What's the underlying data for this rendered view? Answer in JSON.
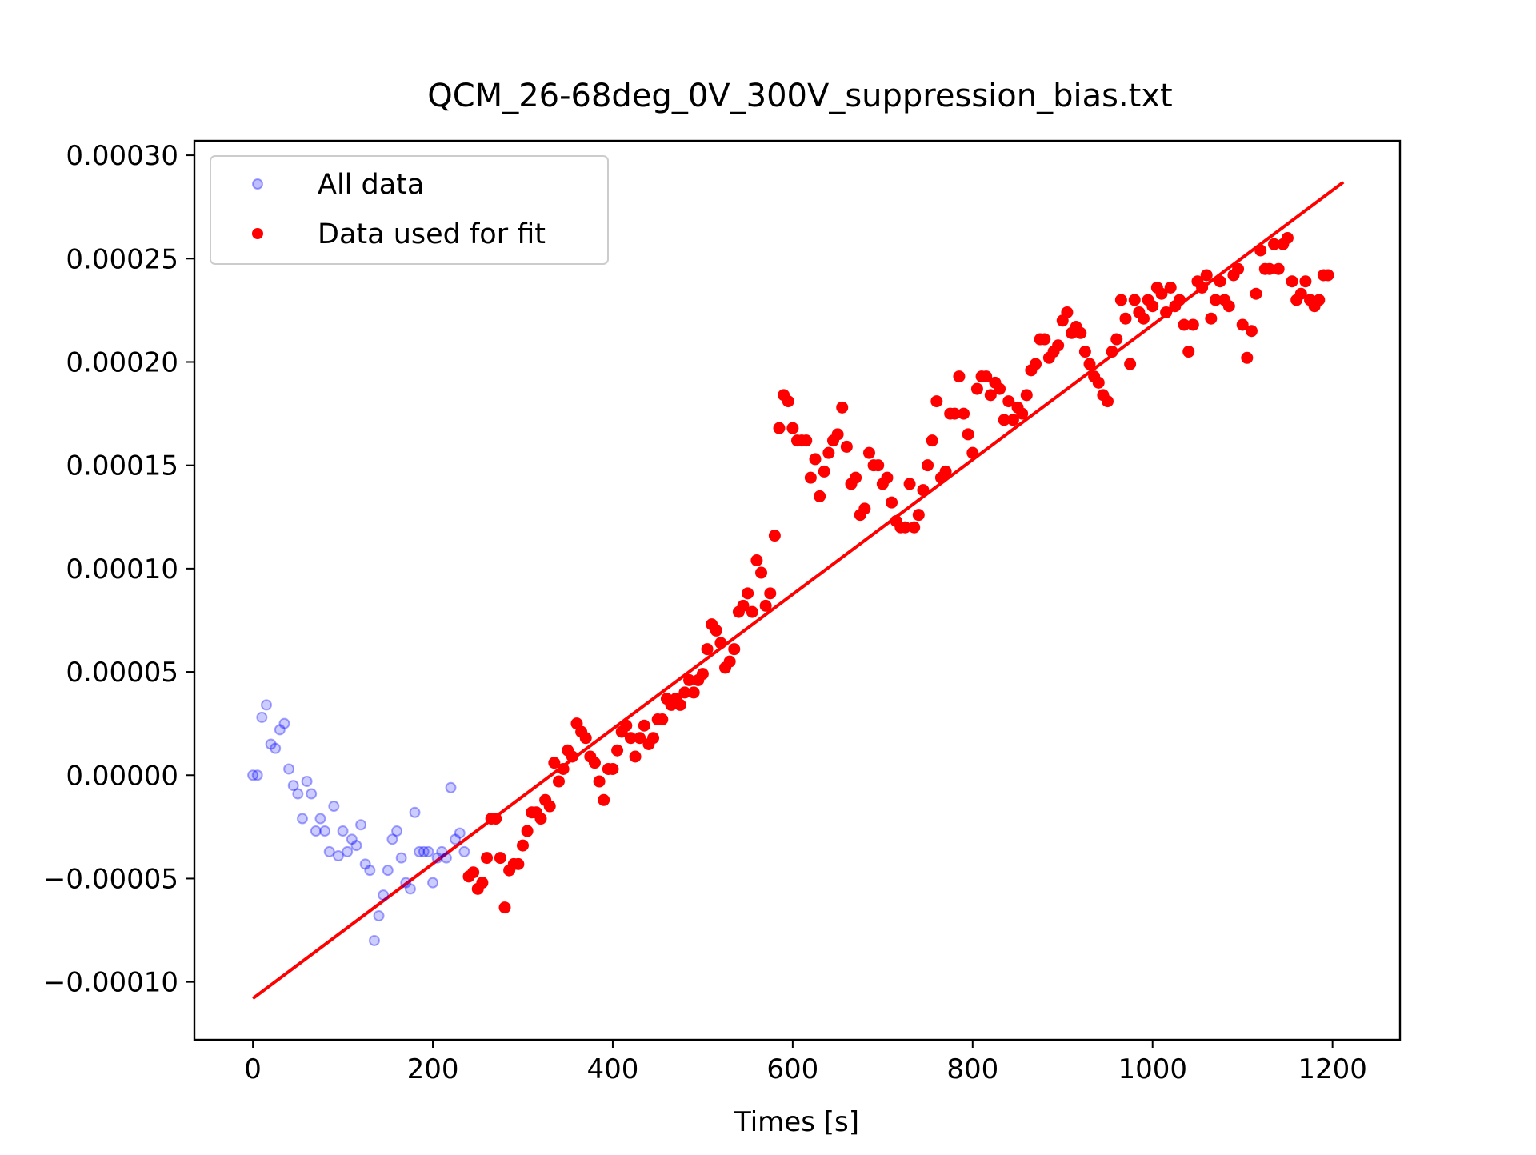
{
  "chart_data": {
    "type": "scatter",
    "title": "QCM_26-68deg_0V_300V_suppression_bias.txt",
    "xlabel": "Times [s]",
    "ylabel": "",
    "xlim": [
      -65,
      1275
    ],
    "ylim": [
      -0.000128,
      0.000307
    ],
    "x_ticks": [
      {
        "value": 0,
        "label": "0"
      },
      {
        "value": 200,
        "label": "200"
      },
      {
        "value": 400,
        "label": "400"
      },
      {
        "value": 600,
        "label": "600"
      },
      {
        "value": 800,
        "label": "800"
      },
      {
        "value": 1000,
        "label": "1000"
      },
      {
        "value": 1200,
        "label": "1200"
      }
    ],
    "y_ticks": [
      {
        "value": -0.0001,
        "label": "−0.00010"
      },
      {
        "value": -5e-05,
        "label": "−0.00005"
      },
      {
        "value": 0,
        "label": "0.00000"
      },
      {
        "value": 5e-05,
        "label": "0.00005"
      },
      {
        "value": 0.0001,
        "label": "0.00010"
      },
      {
        "value": 0.00015,
        "label": "0.00015"
      },
      {
        "value": 0.0002,
        "label": "0.00020"
      },
      {
        "value": 0.00025,
        "label": "0.00025"
      },
      {
        "value": 0.0003,
        "label": "0.00030"
      }
    ],
    "grid": false,
    "legend_position": "top-left",
    "series": [
      {
        "name": "All data",
        "style": "hollow-circle",
        "color": "#0000ff",
        "points": [
          [
            0,
            0.0
          ],
          [
            5,
            0.0
          ],
          [
            10,
            2.8e-05
          ],
          [
            15,
            3.4e-05
          ],
          [
            20,
            1.5e-05
          ],
          [
            25,
            1.3e-05
          ],
          [
            30,
            2.2e-05
          ],
          [
            35,
            2.5e-05
          ],
          [
            40,
            3e-06
          ],
          [
            45,
            -5e-06
          ],
          [
            50,
            -9e-06
          ],
          [
            55,
            -2.1e-05
          ],
          [
            60,
            -3e-06
          ],
          [
            65,
            -9e-06
          ],
          [
            70,
            -2.7e-05
          ],
          [
            75,
            -2.1e-05
          ],
          [
            80,
            -2.7e-05
          ],
          [
            85,
            -3.7e-05
          ],
          [
            90,
            -1.5e-05
          ],
          [
            95,
            -3.9e-05
          ],
          [
            100,
            -2.7e-05
          ],
          [
            105,
            -3.7e-05
          ],
          [
            110,
            -3.1e-05
          ],
          [
            115,
            -3.4e-05
          ],
          [
            120,
            -2.4e-05
          ],
          [
            125,
            -4.3e-05
          ],
          [
            130,
            -4.6e-05
          ],
          [
            135,
            -8e-05
          ],
          [
            140,
            -6.8e-05
          ],
          [
            145,
            -5.8e-05
          ],
          [
            150,
            -4.6e-05
          ],
          [
            155,
            -3.1e-05
          ],
          [
            160,
            -2.7e-05
          ],
          [
            165,
            -4e-05
          ],
          [
            170,
            -5.2e-05
          ],
          [
            175,
            -5.5e-05
          ],
          [
            180,
            -1.8e-05
          ],
          [
            185,
            -3.7e-05
          ],
          [
            190,
            -3.7e-05
          ],
          [
            195,
            -3.7e-05
          ],
          [
            200,
            -5.2e-05
          ],
          [
            205,
            -4e-05
          ],
          [
            210,
            -3.7e-05
          ],
          [
            215,
            -4e-05
          ],
          [
            220,
            -6e-06
          ],
          [
            225,
            -3.1e-05
          ],
          [
            230,
            -2.8e-05
          ],
          [
            235,
            -3.7e-05
          ]
        ]
      },
      {
        "name": "Data used for fit",
        "style": "filled-circle",
        "color": "#ff0000",
        "points": [
          [
            240,
            -4.9e-05
          ],
          [
            245,
            -4.7e-05
          ],
          [
            250,
            -5.5e-05
          ],
          [
            255,
            -5.2e-05
          ],
          [
            260,
            -4e-05
          ],
          [
            265,
            -2.1e-05
          ],
          [
            270,
            -2.1e-05
          ],
          [
            275,
            -4e-05
          ],
          [
            280,
            -6.4e-05
          ],
          [
            285,
            -4.6e-05
          ],
          [
            290,
            -4.3e-05
          ],
          [
            295,
            -4.3e-05
          ],
          [
            300,
            -3.4e-05
          ],
          [
            305,
            -2.7e-05
          ],
          [
            310,
            -1.8e-05
          ],
          [
            315,
            -1.8e-05
          ],
          [
            320,
            -2.1e-05
          ],
          [
            325,
            -1.2e-05
          ],
          [
            330,
            -1.5e-05
          ],
          [
            335,
            6e-06
          ],
          [
            340,
            -3e-06
          ],
          [
            345,
            3e-06
          ],
          [
            350,
            1.2e-05
          ],
          [
            355,
            9e-06
          ],
          [
            360,
            2.5e-05
          ],
          [
            365,
            2.1e-05
          ],
          [
            370,
            1.8e-05
          ],
          [
            375,
            9e-06
          ],
          [
            380,
            6e-06
          ],
          [
            385,
            -3e-06
          ],
          [
            390,
            -1.2e-05
          ],
          [
            395,
            3e-06
          ],
          [
            400,
            3e-06
          ],
          [
            405,
            1.2e-05
          ],
          [
            410,
            2.1e-05
          ],
          [
            415,
            2.4e-05
          ],
          [
            420,
            1.8e-05
          ],
          [
            425,
            9e-06
          ],
          [
            430,
            1.8e-05
          ],
          [
            435,
            2.4e-05
          ],
          [
            440,
            1.5e-05
          ],
          [
            445,
            1.8e-05
          ],
          [
            450,
            2.7e-05
          ],
          [
            455,
            2.7e-05
          ],
          [
            460,
            3.7e-05
          ],
          [
            465,
            3.4e-05
          ],
          [
            470,
            3.7e-05
          ],
          [
            475,
            3.4e-05
          ],
          [
            480,
            4e-05
          ],
          [
            485,
            4.6e-05
          ],
          [
            490,
            4e-05
          ],
          [
            495,
            4.6e-05
          ],
          [
            500,
            4.9e-05
          ],
          [
            505,
            6.1e-05
          ],
          [
            510,
            7.3e-05
          ],
          [
            515,
            7e-05
          ],
          [
            520,
            6.4e-05
          ],
          [
            525,
            5.2e-05
          ],
          [
            530,
            5.5e-05
          ],
          [
            535,
            6.1e-05
          ],
          [
            540,
            7.9e-05
          ],
          [
            545,
            8.2e-05
          ],
          [
            550,
            8.8e-05
          ],
          [
            555,
            7.9e-05
          ],
          [
            560,
            0.000104
          ],
          [
            565,
            9.8e-05
          ],
          [
            570,
            8.2e-05
          ],
          [
            575,
            8.8e-05
          ],
          [
            580,
            0.000116
          ],
          [
            585,
            0.000168
          ],
          [
            590,
            0.000184
          ],
          [
            595,
            0.000181
          ],
          [
            600,
            0.000168
          ],
          [
            605,
            0.000162
          ],
          [
            610,
            0.000162
          ],
          [
            615,
            0.000162
          ],
          [
            620,
            0.000144
          ],
          [
            625,
            0.000153
          ],
          [
            630,
            0.000135
          ],
          [
            635,
            0.000147
          ],
          [
            640,
            0.000156
          ],
          [
            645,
            0.000162
          ],
          [
            650,
            0.000165
          ],
          [
            655,
            0.000178
          ],
          [
            660,
            0.000159
          ],
          [
            665,
            0.000141
          ],
          [
            670,
            0.000144
          ],
          [
            675,
            0.000126
          ],
          [
            680,
            0.000129
          ],
          [
            685,
            0.000156
          ],
          [
            690,
            0.00015
          ],
          [
            695,
            0.00015
          ],
          [
            700,
            0.000141
          ],
          [
            705,
            0.000144
          ],
          [
            710,
            0.000132
          ],
          [
            715,
            0.000123
          ],
          [
            720,
            0.00012
          ],
          [
            725,
            0.00012
          ],
          [
            730,
            0.000141
          ],
          [
            735,
            0.00012
          ],
          [
            740,
            0.000126
          ],
          [
            745,
            0.000138
          ],
          [
            750,
            0.00015
          ],
          [
            755,
            0.000162
          ],
          [
            760,
            0.000181
          ],
          [
            765,
            0.000144
          ],
          [
            770,
            0.000147
          ],
          [
            775,
            0.000175
          ],
          [
            780,
            0.000175
          ],
          [
            785,
            0.000193
          ],
          [
            790,
            0.000175
          ],
          [
            795,
            0.000165
          ],
          [
            800,
            0.000156
          ],
          [
            805,
            0.000187
          ],
          [
            810,
            0.000193
          ],
          [
            815,
            0.000193
          ],
          [
            820,
            0.000184
          ],
          [
            825,
            0.00019
          ],
          [
            830,
            0.000187
          ],
          [
            835,
            0.000172
          ],
          [
            840,
            0.000181
          ],
          [
            845,
            0.000172
          ],
          [
            850,
            0.000178
          ],
          [
            855,
            0.000175
          ],
          [
            860,
            0.000184
          ],
          [
            865,
            0.000196
          ],
          [
            870,
            0.000199
          ],
          [
            875,
            0.000211
          ],
          [
            880,
            0.000211
          ],
          [
            885,
            0.000202
          ],
          [
            890,
            0.000205
          ],
          [
            895,
            0.000208
          ],
          [
            900,
            0.00022
          ],
          [
            905,
            0.000224
          ],
          [
            910,
            0.000214
          ],
          [
            915,
            0.000217
          ],
          [
            920,
            0.000214
          ],
          [
            925,
            0.000205
          ],
          [
            930,
            0.000199
          ],
          [
            935,
            0.000193
          ],
          [
            940,
            0.00019
          ],
          [
            945,
            0.000184
          ],
          [
            950,
            0.000181
          ],
          [
            955,
            0.000205
          ],
          [
            960,
            0.000211
          ],
          [
            965,
            0.00023
          ],
          [
            970,
            0.000221
          ],
          [
            975,
            0.000199
          ],
          [
            980,
            0.00023
          ],
          [
            985,
            0.000224
          ],
          [
            990,
            0.000221
          ],
          [
            995,
            0.00023
          ],
          [
            1000,
            0.000227
          ],
          [
            1005,
            0.000236
          ],
          [
            1010,
            0.000233
          ],
          [
            1015,
            0.000224
          ],
          [
            1020,
            0.000236
          ],
          [
            1025,
            0.000227
          ],
          [
            1030,
            0.00023
          ],
          [
            1035,
            0.000218
          ],
          [
            1040,
            0.000205
          ],
          [
            1045,
            0.000218
          ],
          [
            1050,
            0.000239
          ],
          [
            1055,
            0.000236
          ],
          [
            1060,
            0.000242
          ],
          [
            1065,
            0.000221
          ],
          [
            1070,
            0.00023
          ],
          [
            1075,
            0.000239
          ],
          [
            1080,
            0.00023
          ],
          [
            1085,
            0.000227
          ],
          [
            1090,
            0.000242
          ],
          [
            1095,
            0.000245
          ],
          [
            1100,
            0.000218
          ],
          [
            1105,
            0.000202
          ],
          [
            1110,
            0.000215
          ],
          [
            1115,
            0.000233
          ],
          [
            1120,
            0.000254
          ],
          [
            1125,
            0.000245
          ],
          [
            1130,
            0.000245
          ],
          [
            1135,
            0.000257
          ],
          [
            1140,
            0.000245
          ],
          [
            1145,
            0.000257
          ],
          [
            1150,
            0.00026
          ],
          [
            1155,
            0.000239
          ],
          [
            1160,
            0.00023
          ],
          [
            1165,
            0.000233
          ],
          [
            1170,
            0.000239
          ],
          [
            1175,
            0.00023
          ],
          [
            1180,
            0.000227
          ],
          [
            1185,
            0.00023
          ],
          [
            1190,
            0.000242
          ],
          [
            1195,
            0.000242
          ]
        ]
      }
    ],
    "fit_line": {
      "color": "#ff0000",
      "x": [
        0,
        1212
      ],
      "y": [
        -0.000108,
        0.000287
      ]
    }
  }
}
